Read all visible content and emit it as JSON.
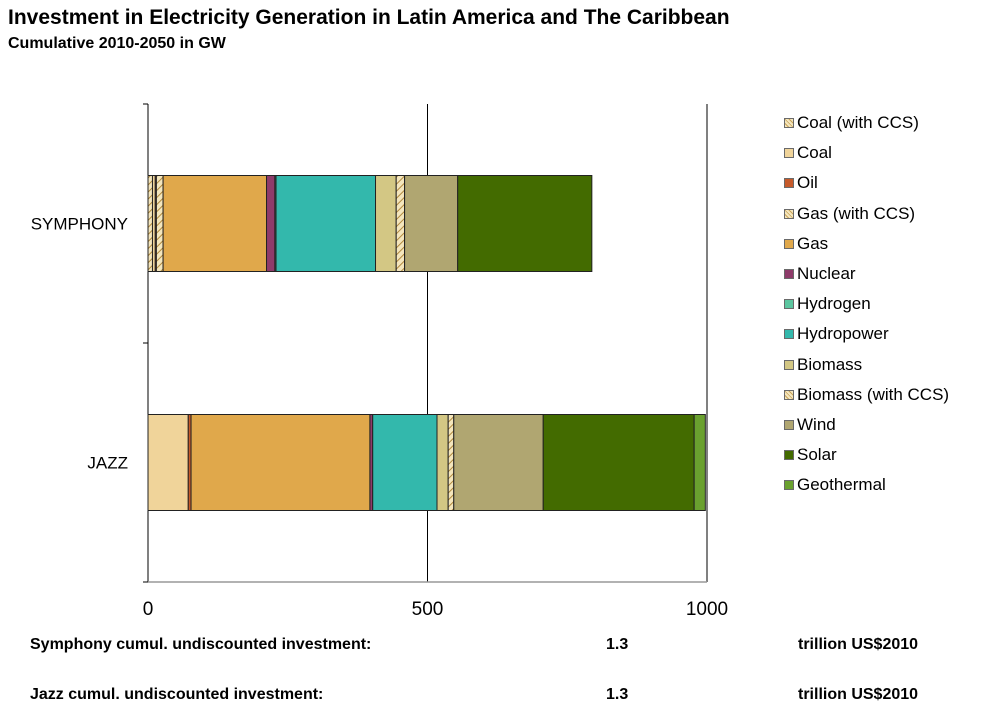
{
  "title": "Investment in Electricity Generation in Latin America and The Caribbean",
  "subtitle": "Cumulative 2010-2050 in GW",
  "chart_data": {
    "type": "bar",
    "orientation": "horizontal",
    "stacked": true,
    "categories": [
      "SYMPHONY",
      "JAZZ"
    ],
    "xlim": [
      0,
      1000
    ],
    "xticks": [
      "0",
      "500",
      "1000"
    ],
    "grid": "vertical",
    "legend_position": "right",
    "series": [
      {
        "name": "Coal (with CCS)",
        "color": "#f2e3b3",
        "pattern": "hatch",
        "values": [
          8,
          0
        ]
      },
      {
        "name": "Coal",
        "color": "#f0d49a",
        "values": [
          5,
          72
        ]
      },
      {
        "name": "Oil",
        "color": "#c65a2a",
        "values": [
          2,
          5
        ]
      },
      {
        "name": "Gas (with CCS)",
        "color": "#f2e3b3",
        "pattern": "hatch",
        "values": [
          12,
          0
        ]
      },
      {
        "name": "Gas",
        "color": "#e0a84b",
        "values": [
          185,
          320
        ]
      },
      {
        "name": "Nuclear",
        "color": "#8e3b6a",
        "values": [
          15,
          5
        ]
      },
      {
        "name": "Hydrogen",
        "color": "#5cc6a0",
        "values": [
          2,
          0
        ]
      },
      {
        "name": "Hydropower",
        "color": "#33b8ac",
        "values": [
          178,
          115
        ]
      },
      {
        "name": "Biomass",
        "color": "#d3c784",
        "values": [
          37,
          20
        ]
      },
      {
        "name": "Biomass (with CCS)",
        "color": "#efe8c4",
        "pattern": "hatch",
        "values": [
          15,
          10
        ]
      },
      {
        "name": "Wind",
        "color": "#b0a671",
        "values": [
          95,
          160
        ]
      },
      {
        "name": "Solar",
        "color": "#436b00",
        "values": [
          240,
          270
        ]
      },
      {
        "name": "Geothermal",
        "color": "#6aa12f",
        "values": [
          0,
          20
        ]
      }
    ]
  },
  "footer": {
    "rows": [
      {
        "label": "Symphony cumul. undiscounted investment:",
        "value": "1.3",
        "unit": "trillion US$2010"
      },
      {
        "label": "Jazz cumul. undiscounted investment:",
        "value": "1.3",
        "unit": "trillion US$2010"
      }
    ]
  }
}
